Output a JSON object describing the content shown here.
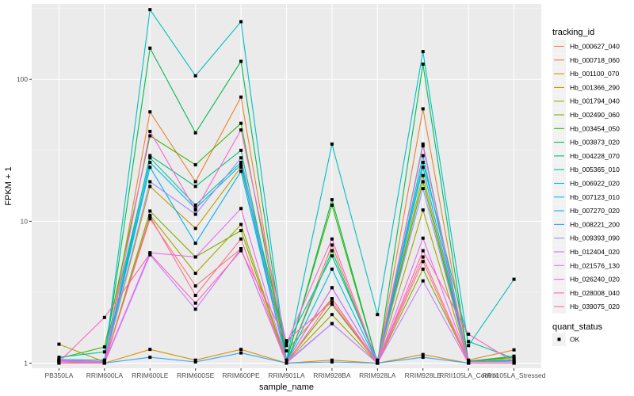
{
  "chart_data": {
    "type": "line",
    "title": "",
    "xlabel": "sample_name",
    "ylabel": "FPKM + 1",
    "y_scale": "log10",
    "ylim": [
      0.92,
      340
    ],
    "y_ticks": [
      1,
      10,
      100
    ],
    "y_tick_labels": [
      "1",
      "10",
      "100"
    ],
    "grid": true,
    "legend_position": "right",
    "categories": [
      "PB350LA",
      "RRIM600LA",
      "RRIM600LE",
      "RRIM600SE",
      "RRIM600PE",
      "RRIM901LA",
      "RRIM928BA",
      "RRIM928LA",
      "RRIM928LE",
      "RRII105LA_Control",
      "RRII105LA_Stressed"
    ],
    "legend": {
      "color_title": "tracking_id",
      "shape_title": "quant_status",
      "shape_entries": [
        {
          "label": "OK",
          "shape": "square"
        }
      ]
    },
    "series": [
      {
        "name": "Hb_000627_040",
        "color": "#F8766D",
        "values": [
          1.05,
          1.02,
          10.4,
          3.5,
          6.4,
          1.02,
          2.6,
          1.02,
          5.6,
          1.02,
          1.02
        ]
      },
      {
        "name": "Hb_000718_060",
        "color": "#EA8331",
        "values": [
          1.05,
          1.0,
          59,
          19,
          75,
          1.0,
          6.8,
          1.0,
          62,
          1.05,
          1.24
        ]
      },
      {
        "name": "Hb_001100_070",
        "color": "#D89000",
        "values": [
          1.0,
          1.0,
          1.25,
          1.05,
          1.25,
          1.0,
          1.05,
          1.0,
          1.15,
          1.0,
          1.0
        ]
      },
      {
        "name": "Hb_001366_290",
        "color": "#C09B00",
        "values": [
          1.36,
          1.02,
          17.6,
          8.9,
          24,
          1.22,
          2.85,
          1.0,
          21,
          1.03,
          1.08
        ]
      },
      {
        "name": "Hb_001794_040",
        "color": "#A3A500",
        "values": [
          1.02,
          1.0,
          11.0,
          4.3,
          9.5,
          1.02,
          2.2,
          1.0,
          12,
          1.02,
          1.05
        ]
      },
      {
        "name": "Hb_002490_060",
        "color": "#7CAE00",
        "values": [
          1.05,
          1.0,
          11.8,
          5.6,
          8.6,
          1.02,
          2.6,
          1.0,
          4.6,
          1.02,
          1.05
        ]
      },
      {
        "name": "Hb_003454_050",
        "color": "#39B600",
        "values": [
          1.08,
          1.3,
          40,
          25,
          49,
          1.05,
          13,
          1.0,
          19,
          1.03,
          1.1
        ]
      },
      {
        "name": "Hb_003873_020",
        "color": "#00BB4E",
        "values": [
          1.05,
          1.05,
          166,
          42,
          134,
          1.02,
          14.2,
          1.0,
          128,
          1.03,
          1.12
        ]
      },
      {
        "name": "Hb_004228_070",
        "color": "#00BF7D",
        "values": [
          1.02,
          1.02,
          29,
          17.6,
          31.6,
          1.02,
          6.2,
          1.0,
          35,
          1.02,
          1.05
        ]
      },
      {
        "name": "Hb_005365_010",
        "color": "#00C1A3",
        "values": [
          1.1,
          1.2,
          28,
          13,
          26,
          1.33,
          5.7,
          1.05,
          26,
          1.42,
          1.08
        ]
      },
      {
        "name": "Hb_006922_020",
        "color": "#00BFC4",
        "values": [
          1.06,
          1.05,
          310,
          106,
          255,
          1.05,
          35,
          2.2,
          157,
          1.33,
          3.9
        ]
      },
      {
        "name": "Hb_007123_010",
        "color": "#00BAE0",
        "values": [
          1.04,
          1.02,
          26,
          12.3,
          25,
          1.02,
          4.6,
          1.0,
          29,
          1.02,
          1.04
        ]
      },
      {
        "name": "Hb_007270_020",
        "color": "#00B0F6",
        "values": [
          1.03,
          1.0,
          24,
          7.0,
          22.5,
          1.02,
          3.4,
          1.0,
          24,
          1.02,
          1.04
        ]
      },
      {
        "name": "Hb_008221_200",
        "color": "#35A2FF",
        "values": [
          1.0,
          1.0,
          1.1,
          1.02,
          1.18,
          1.0,
          1.02,
          1.0,
          1.1,
          1.0,
          1.0
        ]
      },
      {
        "name": "Hb_009393_090",
        "color": "#9590FF",
        "values": [
          1.04,
          1.02,
          19,
          11.2,
          28,
          1.02,
          1.9,
          1.0,
          17,
          1.02,
          1.02
        ]
      },
      {
        "name": "Hb_012404_020",
        "color": "#C77CFF",
        "values": [
          1.03,
          1.0,
          5.8,
          2.4,
          6.4,
          1.0,
          1.9,
          1.0,
          3.8,
          1.0,
          1.0
        ]
      },
      {
        "name": "Hb_021576_130",
        "color": "#E76BF3",
        "values": [
          1.05,
          1.02,
          6.0,
          5.6,
          12.3,
          1.02,
          3.4,
          1.0,
          7.6,
          1.02,
          1.02
        ]
      },
      {
        "name": "Hb_026240_020",
        "color": "#FA62DB",
        "values": [
          1.02,
          1.02,
          43,
          12,
          44,
          1.38,
          7.5,
          1.0,
          34,
          1.0,
          1.0
        ]
      },
      {
        "name": "Hb_028008_040",
        "color": "#FF62BC",
        "values": [
          1.02,
          2.1,
          5.9,
          2.65,
          6.2,
          1.44,
          2.7,
          1.0,
          6.2,
          1.6,
          1.02
        ]
      },
      {
        "name": "Hb_039075_020",
        "color": "#FF6C91",
        "values": [
          1.0,
          1.0,
          10.8,
          3.0,
          7.5,
          1.0,
          2.85,
          1.0,
          5.2,
          1.0,
          1.0
        ]
      }
    ]
  }
}
